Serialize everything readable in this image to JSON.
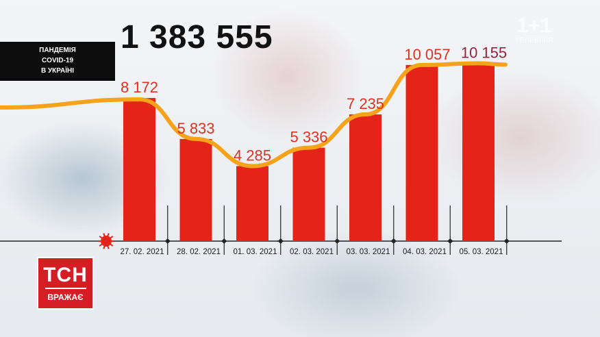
{
  "title_block": {
    "line1": "ПАНДЕМІЯ",
    "line2": "COVID-19",
    "line3": "В УКРАЇНІ"
  },
  "total_cases": "1 383 555",
  "watermark": {
    "main": "1+1",
    "sub": "ТЕЛЕВІЗІЯ"
  },
  "logo": {
    "main": "ТСН",
    "sub": "ВРАЖАЄ"
  },
  "colors": {
    "bar": "#e52419",
    "line": "#f7a21b",
    "label": "#e03020",
    "label_last": "#a0203a",
    "axis": "#222222"
  },
  "icons": {
    "virus": "virus-icon"
  },
  "chart_data": {
    "type": "bar",
    "categories": [
      "27. 02. 2021",
      "28. 02. 2021",
      "01. 03. 2021",
      "02. 03. 2021",
      "03. 03. 2021",
      "04. 03. 2021",
      "05. 03. 2021"
    ],
    "values": [
      8172,
      5833,
      4285,
      5336,
      7235,
      10057,
      10155
    ],
    "value_labels": [
      "8 172",
      "5 833",
      "4 285",
      "5 336",
      "7 235",
      "10 057",
      "10 155"
    ],
    "trend_line": true,
    "ylim": [
      0,
      11500
    ],
    "grid": false,
    "xlabel": "",
    "ylabel": ""
  }
}
